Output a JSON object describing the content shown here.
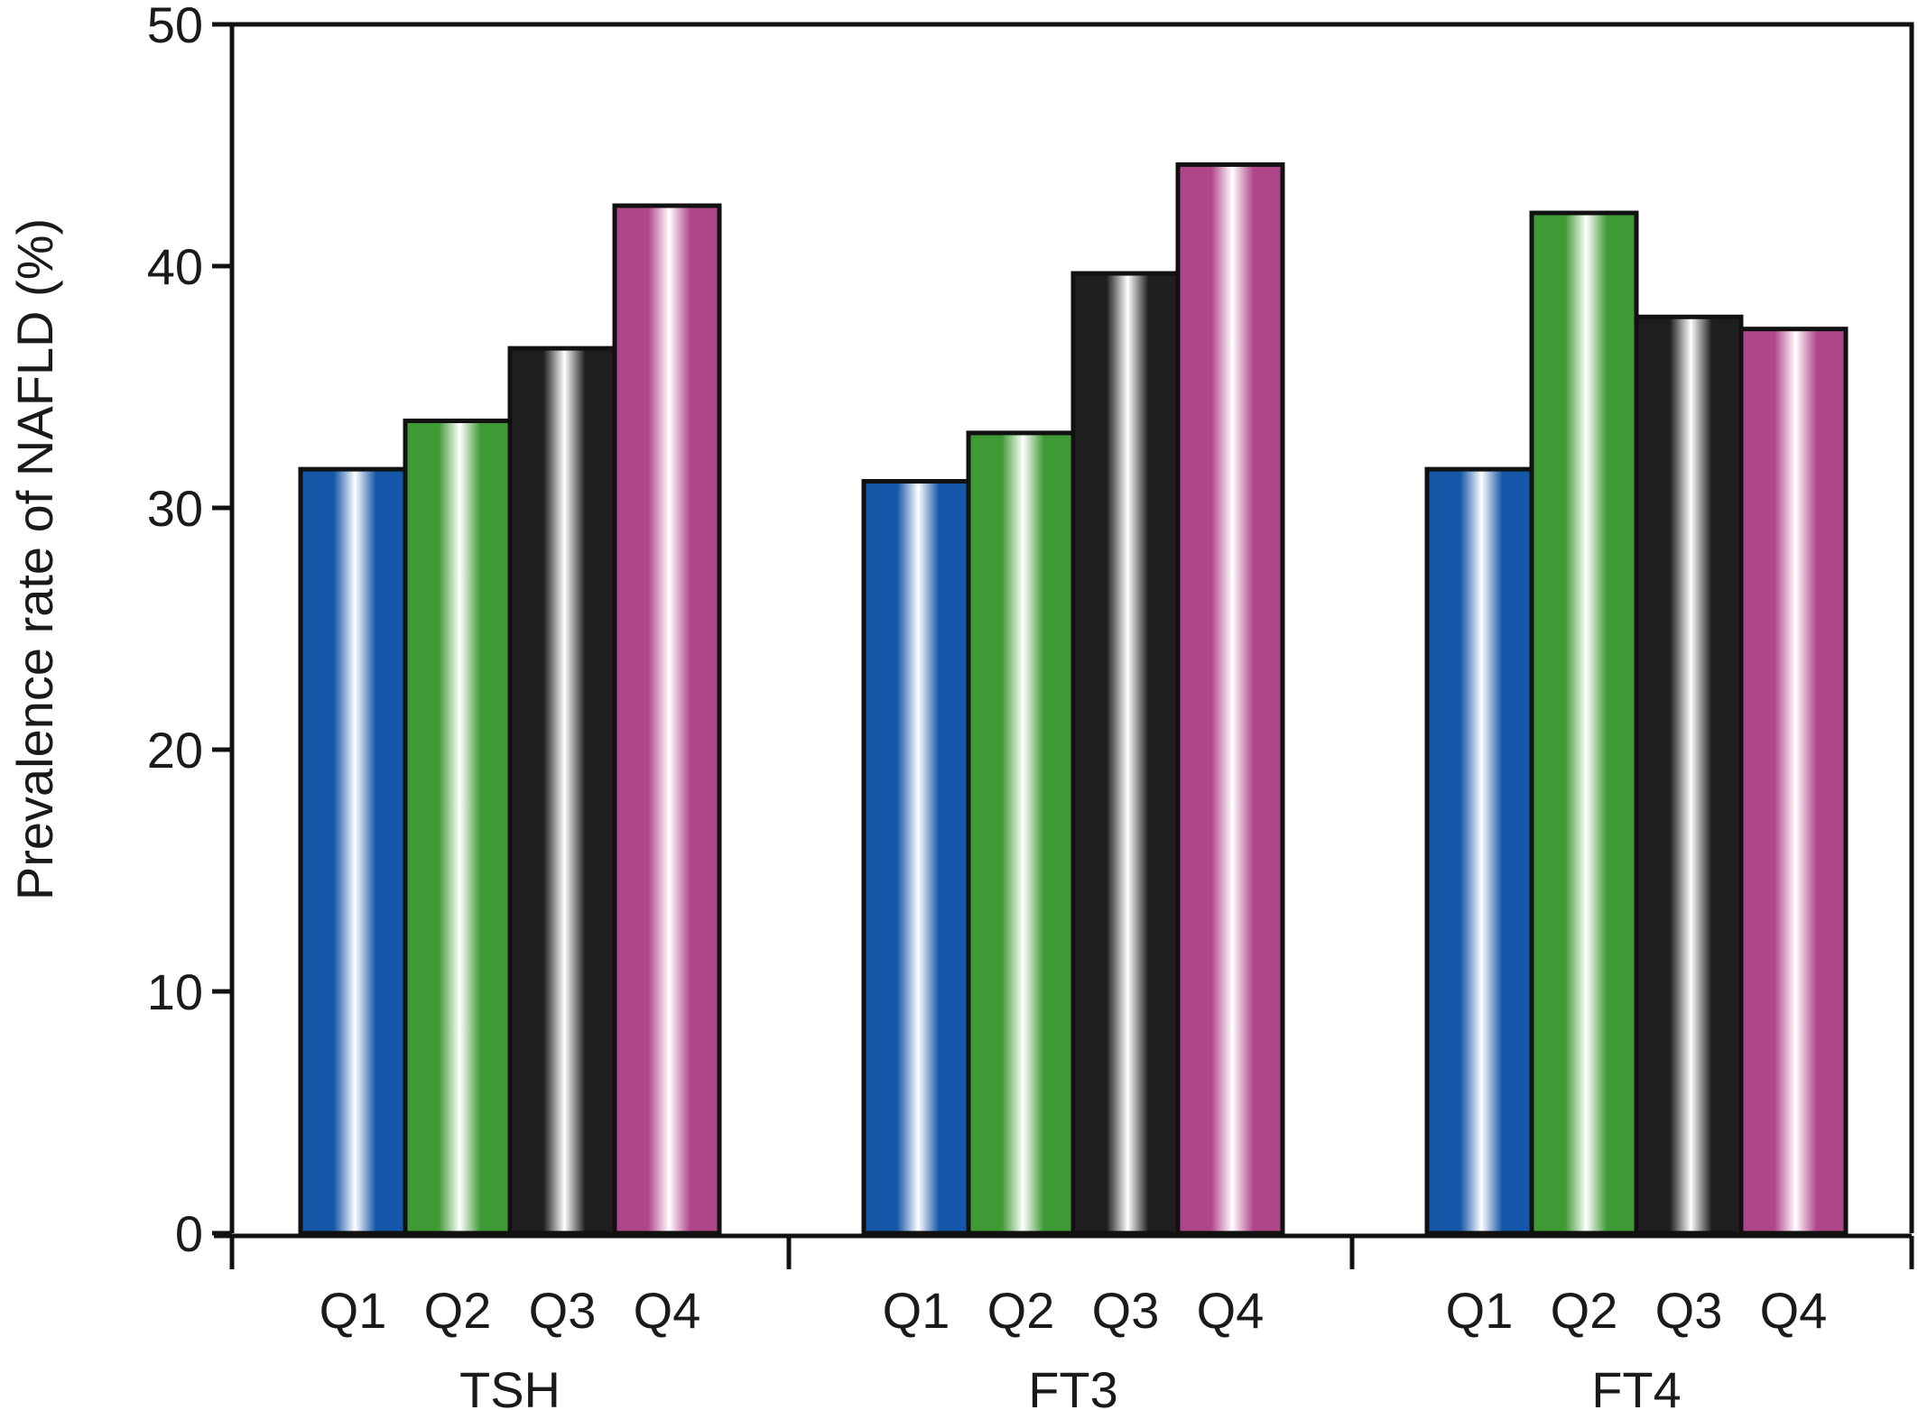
{
  "chart_data": {
    "type": "bar",
    "title": "",
    "xlabel": "",
    "ylabel": "Prevalence rate of NAFLD (%)",
    "ylim": [
      0,
      50
    ],
    "yticks": [
      0,
      10,
      20,
      30,
      40,
      50
    ],
    "grid": false,
    "groups": [
      {
        "name": "TSH",
        "categories": [
          "Q1",
          "Q2",
          "Q3",
          "Q4"
        ],
        "values": [
          31.6,
          33.6,
          36.6,
          42.5
        ]
      },
      {
        "name": "FT3",
        "categories": [
          "Q1",
          "Q2",
          "Q3",
          "Q4"
        ],
        "values": [
          31.1,
          33.1,
          39.7,
          44.2
        ]
      },
      {
        "name": "FT4",
        "categories": [
          "Q1",
          "Q2",
          "Q3",
          "Q4"
        ],
        "values": [
          31.6,
          42.2,
          37.9,
          37.4
        ]
      }
    ],
    "colors": {
      "Q1": "#1557a8",
      "Q2": "#3f9a35",
      "Q3": "#1e1e1e",
      "Q4": "#b0468a"
    }
  }
}
